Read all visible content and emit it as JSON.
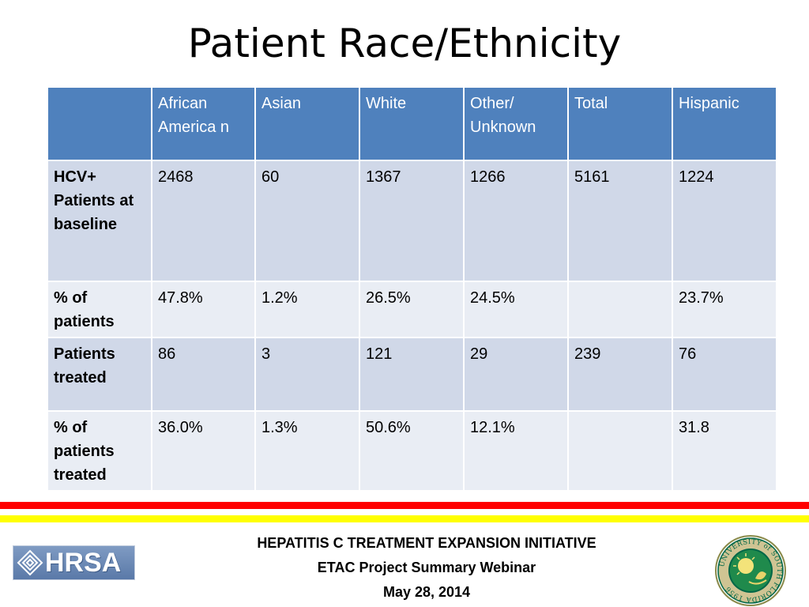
{
  "slide": {
    "title": "Patient Race/Ethnicity"
  },
  "table": {
    "headers": [
      "",
      "African America n",
      "Asian",
      "White",
      "Other/ Unknown",
      "Total",
      "Hispanic"
    ],
    "rows": [
      {
        "label": "HCV+ Patients at baseline",
        "cells": [
          "2468",
          "60",
          "1367",
          "1266",
          "5161",
          "1224"
        ]
      },
      {
        "label": "% of patients",
        "cells": [
          "47.8%",
          "1.2%",
          "26.5%",
          "24.5%",
          "",
          "23.7%"
        ]
      },
      {
        "label": "Patients treated",
        "cells": [
          "86",
          "3",
          "121",
          "29",
          "239",
          "76"
        ]
      },
      {
        "label": "% of patients treated",
        "cells": [
          "36.0%",
          "1.3%",
          "50.6%",
          "12.1%",
          "",
          "31.8"
        ]
      }
    ]
  },
  "footer": {
    "line1": "HEPATITIS C TREATMENT EXPANSION INITIATIVE",
    "line2": "ETAC Project Summary Webinar",
    "line3": "May 28, 2014"
  },
  "logos": {
    "hrsa": "HRSA",
    "usf_seal_text": "UNIVERSITY of SOUTH FLORIDA 1956"
  },
  "colors": {
    "header_bg": "#4f81bd",
    "row_dark": "#d0d8e8",
    "row_light": "#e9edf4",
    "stripe_red": "#ff0000",
    "stripe_yellow": "#ffff00",
    "usf_green": "#006747",
    "usf_gold": "#cfc493"
  }
}
